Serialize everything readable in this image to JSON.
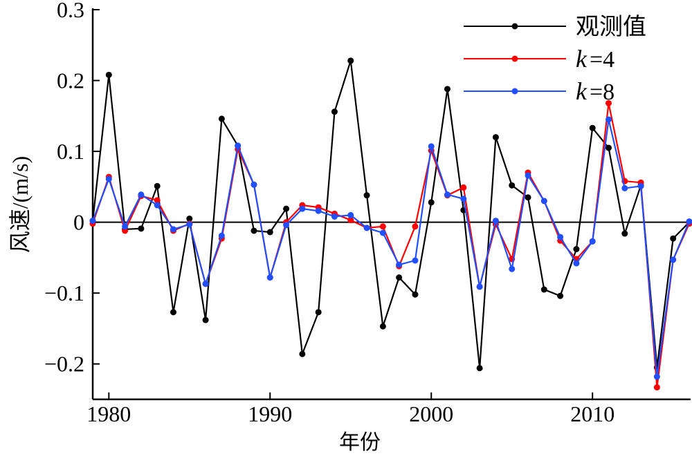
{
  "chart_data": {
    "type": "line",
    "title": "",
    "xlabel": "年份",
    "ylabel": "风速/(m/s)",
    "xlim": [
      1979,
      2016
    ],
    "ylim": [
      -0.25,
      0.3
    ],
    "xticks": [
      1980,
      1990,
      2000,
      2010
    ],
    "xtick_labels": [
      "1980",
      "1990",
      "2000",
      "2010"
    ],
    "yticks": [
      0.3,
      0.2,
      0.1,
      0,
      -0.1,
      -0.2
    ],
    "ytick_labels": [
      "0.3",
      "0.2",
      "0.1",
      "0",
      "−0.1",
      "−0.2"
    ],
    "zero_line": true,
    "grid": false,
    "legend_position": "top-right",
    "x": [
      1979,
      1980,
      1981,
      1982,
      1983,
      1984,
      1985,
      1986,
      1987,
      1988,
      1989,
      1990,
      1991,
      1992,
      1993,
      1994,
      1995,
      1996,
      1997,
      1998,
      1999,
      2000,
      2001,
      2002,
      2003,
      2004,
      2005,
      2006,
      2007,
      2008,
      2009,
      2010,
      2011,
      2012,
      2013,
      2014,
      2015,
      2016
    ],
    "series": [
      {
        "name": "观测值",
        "legend_prefix": "",
        "legend_suffix": "观测值",
        "color": "#000000",
        "values": [
          0.002,
          0.208,
          -0.01,
          -0.009,
          0.051,
          -0.127,
          0.005,
          -0.138,
          0.146,
          0.108,
          -0.012,
          -0.014,
          0.019,
          -0.186,
          -0.127,
          0.156,
          0.228,
          0.038,
          -0.147,
          -0.078,
          -0.102,
          0.028,
          0.188,
          0.017,
          -0.206,
          0.12,
          0.052,
          0.035,
          -0.095,
          -0.104,
          -0.038,
          0.133,
          0.105,
          -0.016,
          0.052,
          -0.205,
          -0.023,
          0.0
        ]
      },
      {
        "name": "k=4",
        "legend_prefix": "k",
        "legend_suffix": "=4",
        "color": "#ff0000",
        "values": [
          -0.002,
          0.064,
          -0.012,
          0.037,
          0.031,
          -0.012,
          -0.002,
          -0.087,
          -0.023,
          0.103,
          0.053,
          -0.078,
          0.0,
          0.024,
          0.021,
          0.012,
          0.003,
          -0.008,
          -0.006,
          -0.062,
          -0.006,
          0.101,
          0.038,
          0.049,
          -0.091,
          -0.003,
          -0.052,
          0.07,
          0.03,
          -0.026,
          -0.052,
          -0.027,
          0.168,
          0.058,
          0.056,
          -0.233,
          -0.053,
          -0.002
        ]
      },
      {
        "name": "k=8",
        "legend_prefix": "k",
        "legend_suffix": "=8",
        "color": "#1f4fff",
        "values": [
          0.002,
          0.061,
          -0.006,
          0.039,
          0.024,
          -0.01,
          -0.003,
          -0.087,
          -0.019,
          0.108,
          0.053,
          -0.078,
          -0.004,
          0.019,
          0.016,
          0.008,
          0.01,
          -0.008,
          -0.015,
          -0.06,
          -0.054,
          0.107,
          0.039,
          0.033,
          -0.091,
          0.002,
          -0.066,
          0.066,
          0.03,
          -0.021,
          -0.058,
          -0.027,
          0.145,
          0.048,
          0.051,
          -0.218,
          -0.053,
          0.001
        ]
      }
    ]
  }
}
